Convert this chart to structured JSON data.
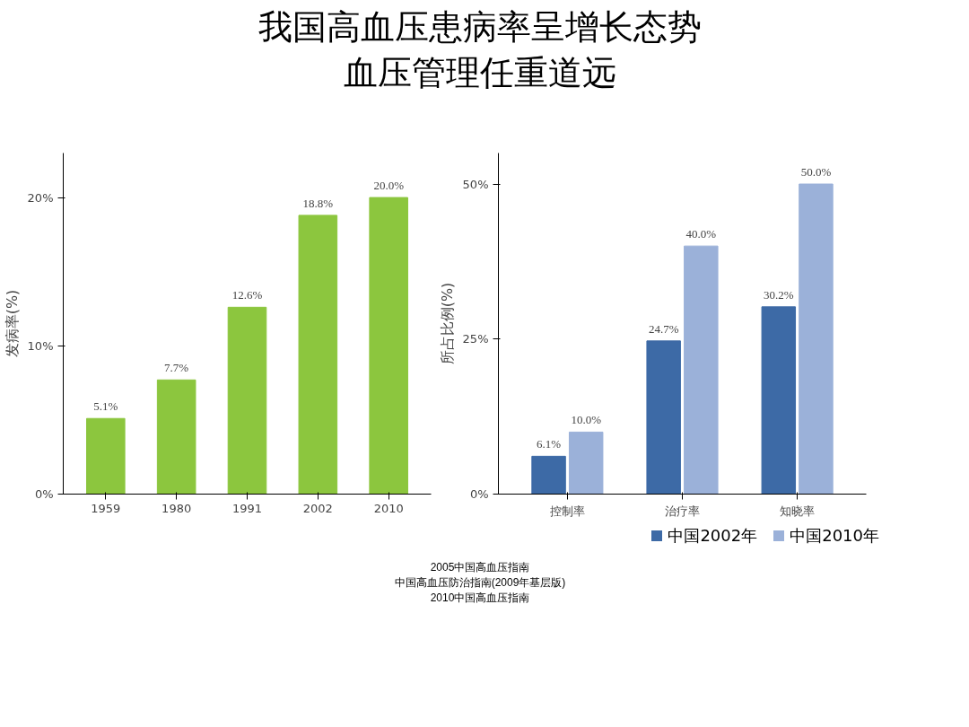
{
  "chart_data": [
    {
      "type": "bar",
      "title": "我国高血压患病率呈增长态势血压管理任重道远",
      "ylabel": "发病率(%)",
      "categories": [
        "1959",
        "1980",
        "1991",
        "2002",
        "2010"
      ],
      "series": [
        {
          "color": "#8cc63e",
          "values": [
            5.1,
            7.7,
            12.6,
            18.8,
            20.0
          ],
          "value_labels": [
            "5.1%",
            "7.7%",
            "12.6%",
            "18.8%",
            "20.0%"
          ]
        }
      ],
      "ylim": [
        0,
        23
      ],
      "yticks": [
        {
          "value": 0,
          "label": "0%"
        },
        {
          "value": 10,
          "label": "10%"
        },
        {
          "value": 20,
          "label": "20%"
        }
      ]
    },
    {
      "type": "bar",
      "ylabel": "所占比例(%)",
      "categories": [
        "控制率",
        "治疗率",
        "知晓率"
      ],
      "series": [
        {
          "name": "中国2002年",
          "color": "#3d6aa6",
          "values": [
            6.1,
            24.7,
            30.2
          ],
          "value_labels": [
            "6.1%",
            "24.7%",
            "30.2%"
          ]
        },
        {
          "name": "中国2010年",
          "color": "#9bb1d9",
          "values": [
            10.0,
            40.0,
            50.0
          ],
          "value_labels": [
            "10.0%",
            "40.0%",
            "50.0%"
          ]
        }
      ],
      "ylim": [
        0,
        55
      ],
      "yticks": [
        {
          "value": 0,
          "label": "0%"
        },
        {
          "value": 25,
          "label": "25%"
        },
        {
          "value": 50,
          "label": "50%"
        }
      ],
      "legend": "bottom",
      "annotations": [
        "2005中国高血压指南",
        "中国高血压防治指南(2009年基层版)",
        "2010中国高血压指南"
      ]
    }
  ]
}
